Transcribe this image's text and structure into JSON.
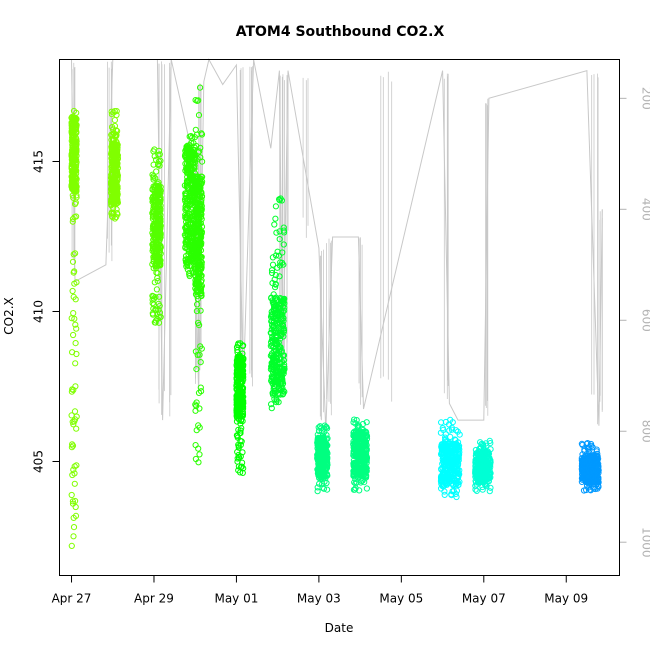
{
  "chart_data": {
    "type": "scatter",
    "title": "ATOM4 Southbound CO2.X",
    "xlabel": "Date",
    "ylabel": "CO2.X",
    "xlim": [
      "2016-04-26T17:00",
      "2016-05-10T07:00"
    ],
    "ylim": [
      401.2,
      418.4
    ],
    "x_ticks": [
      "2016-04-27",
      "2016-04-29",
      "2016-05-01",
      "2016-05-03",
      "2016-05-05",
      "2016-05-07",
      "2016-05-09"
    ],
    "x_tick_labels": [
      "Apr 27",
      "Apr 29",
      "May 01",
      "May 03",
      "May 05",
      "May 07",
      "May 09"
    ],
    "y_ticks": [
      405,
      410,
      415
    ],
    "y_tick_labels": [
      "405",
      "410",
      "415"
    ],
    "secondary_axis": {
      "side": "right",
      "reversed": true,
      "range": [
        130,
        1060
      ],
      "ticks": [
        200,
        400,
        600,
        800,
        1000
      ],
      "tick_labels": [
        "200",
        "400",
        "600",
        "800",
        "1000"
      ],
      "color": "#b3b3b3"
    },
    "grid": false,
    "legend": "none",
    "series": [
      {
        "kind": "co2_clusters",
        "marker": "open-circle",
        "clusters": [
          {
            "start": "2016-04-27T00:00",
            "end": "2016-04-27T03:00",
            "ymin": 402.0,
            "ymax": 417.2,
            "dense": [
              414.0,
              416.5
            ],
            "color": "#80ff00"
          },
          {
            "start": "2016-04-27T23:00",
            "end": "2016-04-28T03:00",
            "ymin": 413.0,
            "ymax": 416.7,
            "dense": [
              413.6,
              415.6
            ],
            "color": "#80ff00"
          },
          {
            "start": "2016-04-28T23:00",
            "end": "2016-04-29T04:00",
            "ymin": 409.6,
            "ymax": 415.4,
            "dense": [
              411.5,
              414.2
            ],
            "color": "#55ff00"
          },
          {
            "start": "2016-04-29T18:00",
            "end": "2016-04-30T00:00",
            "ymin": 411.0,
            "ymax": 416.0,
            "dense": [
              411.5,
              415.5
            ],
            "color": "#2bff00"
          },
          {
            "start": "2016-04-30T00:00",
            "end": "2016-04-30T04:00",
            "ymin": 404.6,
            "ymax": 417.5,
            "dense": [
              410.5,
              414.5
            ],
            "color": "#2bff00"
          },
          {
            "start": "2016-05-01T00:00",
            "end": "2016-05-01T04:00",
            "ymin": 404.6,
            "ymax": 409.0,
            "dense": [
              406.5,
              408.5
            ],
            "color": "#00ff00"
          },
          {
            "start": "2016-05-01T20:00",
            "end": "2016-05-02T04:00",
            "ymin": 406.7,
            "ymax": 413.8,
            "dense": [
              407.2,
              410.5
            ],
            "color": "#00ff2b"
          },
          {
            "start": "2016-05-02T23:00",
            "end": "2016-05-03T05:00",
            "ymin": 404.0,
            "ymax": 406.2,
            "dense": [
              404.5,
              405.8
            ],
            "color": "#00ff80"
          },
          {
            "start": "2016-05-03T20:00",
            "end": "2016-05-04T04:00",
            "ymin": 404.0,
            "ymax": 406.4,
            "dense": [
              404.5,
              406.0
            ],
            "color": "#00ff80"
          },
          {
            "start": "2016-05-05T23:00",
            "end": "2016-05-06T10:00",
            "ymin": 403.8,
            "ymax": 406.4,
            "dense": [
              404.2,
              405.6
            ],
            "color": "#00ffff"
          },
          {
            "start": "2016-05-06T19:00",
            "end": "2016-05-07T04:00",
            "ymin": 404.0,
            "ymax": 405.7,
            "dense": [
              404.3,
              405.3
            ],
            "color": "#00ffd5"
          },
          {
            "start": "2016-05-09T09:00",
            "end": "2016-05-09T19:00",
            "ymin": 404.0,
            "ymax": 405.7,
            "dense": [
              404.3,
              405.2
            ],
            "color": "#0099ff"
          }
        ]
      },
      {
        "kind": "secondary_trace",
        "color": "#c8c8c8",
        "points": [
          [
            "2016-04-27T00:00",
            130
          ],
          [
            "2016-04-27T02:00",
            530
          ],
          [
            "2016-04-27T20:00",
            500
          ],
          [
            "2016-04-28T00:00",
            130
          ],
          [
            "2016-04-28T06:00",
            130
          ],
          [
            "2016-04-29T02:00",
            130
          ],
          [
            "2016-04-29T05:00",
            780
          ],
          [
            "2016-04-29T10:00",
            130
          ],
          [
            "2016-04-29T23:00",
            310
          ],
          [
            "2016-04-30T02:00",
            730
          ],
          [
            "2016-04-30T05:00",
            170
          ],
          [
            "2016-04-30T08:00",
            130
          ],
          [
            "2016-04-30T16:00",
            175
          ],
          [
            "2016-05-01T00:00",
            140
          ],
          [
            "2016-05-01T04:00",
            720
          ],
          [
            "2016-05-01T10:00",
            130
          ],
          [
            "2016-05-01T20:00",
            290
          ],
          [
            "2016-05-02T01:00",
            150
          ],
          [
            "2016-05-02T03:00",
            700
          ],
          [
            "2016-05-02T06:00",
            150
          ],
          [
            "2016-05-03T00:00",
            470
          ],
          [
            "2016-05-03T04:00",
            800
          ],
          [
            "2016-05-03T08:00",
            450
          ],
          [
            "2016-05-03T23:00",
            450
          ],
          [
            "2016-05-04T02:00",
            760
          ],
          [
            "2016-05-06T00:00",
            150
          ],
          [
            "2016-05-06T04:00",
            750
          ],
          [
            "2016-05-06T09:00",
            780
          ],
          [
            "2016-05-06T15:00",
            780
          ],
          [
            "2016-05-07T00:00",
            780
          ],
          [
            "2016-05-07T03:00",
            200
          ],
          [
            "2016-05-09T12:00",
            150
          ],
          [
            "2016-05-09T19:00",
            790
          ],
          [
            "2016-05-09T21:00",
            400
          ]
        ]
      }
    ]
  }
}
